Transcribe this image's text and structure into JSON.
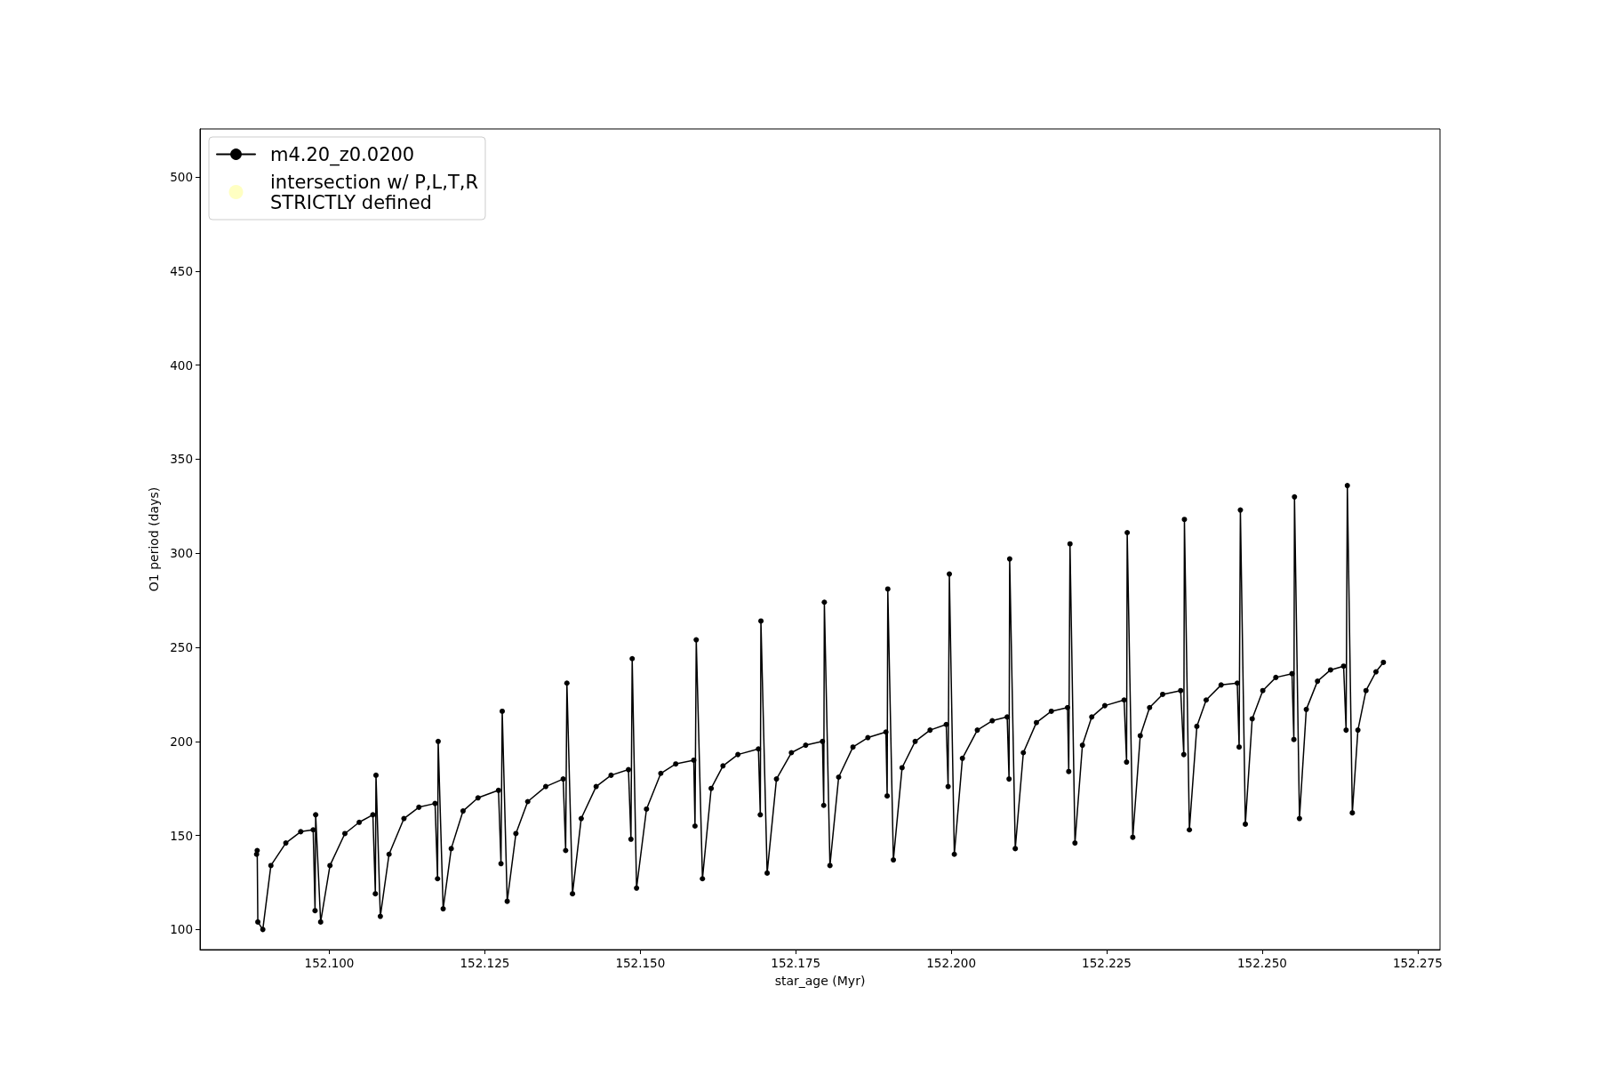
{
  "chart_data": {
    "type": "line",
    "xlabel": "star_age (Myr)",
    "ylabel": "O1 period (days)",
    "xlim": [
      152.0792,
      152.2786
    ],
    "ylim": [
      89.3,
      525.6
    ],
    "xticks": [
      {
        "value": 152.1,
        "label": "152.100"
      },
      {
        "value": 152.125,
        "label": "152.125"
      },
      {
        "value": 152.15,
        "label": "152.150"
      },
      {
        "value": 152.175,
        "label": "152.175"
      },
      {
        "value": 152.2,
        "label": "152.200"
      },
      {
        "value": 152.225,
        "label": "152.225"
      },
      {
        "value": 152.25,
        "label": "152.250"
      },
      {
        "value": 152.275,
        "label": "152.275"
      }
    ],
    "yticks": [
      100,
      150,
      200,
      250,
      300,
      350,
      400,
      450,
      500
    ],
    "grid": false,
    "legend": "top left",
    "marker": "circle",
    "line_style": "solid",
    "series": [
      {
        "name": "m4.20_z0.0200",
        "color": "#000000",
        "x": [
          152.0883,
          152.0884,
          152.0885,
          152.0893,
          152.0906,
          152.093,
          152.0954,
          152.0974,
          152.0977,
          152.0978,
          152.0986,
          152.1001,
          152.1025,
          152.1048,
          152.107,
          152.1074,
          152.1075,
          152.1082,
          152.1096,
          152.112,
          152.1144,
          152.117,
          152.1174,
          152.1175,
          152.1183,
          152.1196,
          152.1215,
          152.1239,
          152.1272,
          152.1276,
          152.1278,
          152.1286,
          152.13,
          152.1319,
          152.1348,
          152.1376,
          152.138,
          152.1382,
          152.1391,
          152.1405,
          152.1429,
          152.1453,
          152.1481,
          152.1485,
          152.1487,
          152.1494,
          152.151,
          152.1533,
          152.1557,
          152.1586,
          152.1588,
          152.159,
          152.16,
          152.1614,
          152.1633,
          152.1657,
          152.169,
          152.1693,
          152.1694,
          152.1704,
          152.1719,
          152.1743,
          152.1766,
          152.1793,
          152.1795,
          152.1796,
          152.1805,
          152.1819,
          152.1842,
          152.1866,
          152.1895,
          152.1897,
          152.1898,
          152.1907,
          152.1921,
          152.1942,
          152.1966,
          152.1992,
          152.1995,
          152.1997,
          152.2005,
          152.2018,
          152.2042,
          152.2066,
          152.209,
          152.2093,
          152.2094,
          152.2103,
          152.2116,
          152.2137,
          152.2161,
          152.2187,
          152.2189,
          152.2191,
          152.2199,
          152.2211,
          152.2226,
          152.2247,
          152.2278,
          152.2282,
          152.2283,
          152.2292,
          152.2304,
          152.2319,
          152.234,
          152.2369,
          152.2374,
          152.2375,
          152.2383,
          152.2395,
          152.241,
          152.2434,
          152.246,
          152.2463,
          152.2465,
          152.2473,
          152.2484,
          152.2501,
          152.2522,
          152.2548,
          152.2551,
          152.2552,
          152.256,
          152.2571,
          152.2589,
          152.261,
          152.2631,
          152.2635,
          152.2637,
          152.2645,
          152.2654,
          152.2667,
          152.2683,
          152.2695
        ],
        "values": [
          140,
          142,
          104,
          100,
          134,
          146,
          152,
          153,
          110,
          161,
          104,
          134,
          151,
          157,
          161,
          119,
          182,
          107,
          140,
          159,
          165,
          167,
          127,
          200,
          111,
          143,
          163,
          170,
          174,
          135,
          216,
          115,
          151,
          168,
          176,
          180,
          142,
          231,
          119,
          159,
          176,
          182,
          185,
          148,
          244,
          122,
          164,
          183,
          188,
          190,
          155,
          254,
          127,
          175,
          187,
          193,
          196,
          161,
          264,
          130,
          180,
          194,
          198,
          200,
          166,
          274,
          134,
          181,
          197,
          202,
          205,
          171,
          281,
          137,
          186,
          200,
          206,
          209,
          176,
          289,
          140,
          191,
          206,
          211,
          213,
          180,
          297,
          143,
          194,
          210,
          216,
          218,
          184,
          305,
          146,
          198,
          213,
          219,
          222,
          189,
          311,
          149,
          203,
          218,
          225,
          227,
          193,
          318,
          153,
          208,
          222,
          230,
          231,
          197,
          323,
          156,
          212,
          227,
          234,
          236,
          201,
          330,
          159,
          217,
          232,
          238,
          240,
          206,
          336,
          162,
          206,
          227,
          237,
          242
        ]
      },
      {
        "name": "intersection w/ P,L,T,R\nSTRICTLY defined",
        "type": "scatter",
        "color": "#ffffb3"
      }
    ]
  }
}
